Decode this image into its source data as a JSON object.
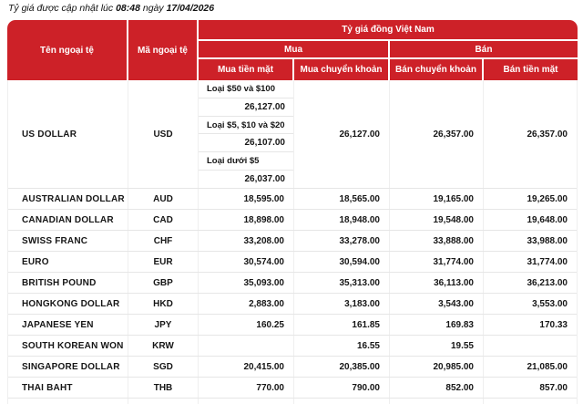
{
  "colors": {
    "header_red": "#CD2128"
  },
  "updated": {
    "prefix": "Tỷ giá được cập nhật lúc",
    "time": "08:48",
    "middle": "ngày",
    "date": "17/04/2026"
  },
  "table": {
    "headers": {
      "currency_name": "Tên ngoại tệ",
      "currency_code": "Mã ngoại tệ",
      "rate_group": "Tỷ giá đồng Việt Nam",
      "buy": "Mua",
      "sell": "Bán",
      "buy_cash": "Mua tiền mặt",
      "buy_transfer": "Mua chuyển khoản",
      "sell_transfer": "Bán chuyển khoản",
      "sell_cash": "Bán tiền mặt"
    },
    "usd": {
      "name": "US DOLLAR",
      "code": "USD",
      "tiers": [
        {
          "label": "Loại $50 và $100",
          "value": "26,127.00"
        },
        {
          "label": "Loại $5, $10 và $20",
          "value": "26,107.00"
        },
        {
          "label": "Loại dưới $5",
          "value": "26,037.00"
        }
      ],
      "buy_transfer": "26,127.00",
      "sell_transfer": "26,357.00",
      "sell_cash": "26,357.00"
    },
    "rows": [
      {
        "name": "AUSTRALIAN DOLLAR",
        "code": "AUD",
        "buy_cash": "18,595.00",
        "buy_transfer": "18,565.00",
        "sell_transfer": "19,165.00",
        "sell_cash": "19,265.00"
      },
      {
        "name": "CANADIAN DOLLAR",
        "code": "CAD",
        "buy_cash": "18,898.00",
        "buy_transfer": "18,948.00",
        "sell_transfer": "19,548.00",
        "sell_cash": "19,648.00"
      },
      {
        "name": "SWISS FRANC",
        "code": "CHF",
        "buy_cash": "33,208.00",
        "buy_transfer": "33,278.00",
        "sell_transfer": "33,888.00",
        "sell_cash": "33,988.00"
      },
      {
        "name": "EURO",
        "code": "EUR",
        "buy_cash": "30,574.00",
        "buy_transfer": "30,594.00",
        "sell_transfer": "31,774.00",
        "sell_cash": "31,774.00"
      },
      {
        "name": "BRITISH POUND",
        "code": "GBP",
        "buy_cash": "35,093.00",
        "buy_transfer": "35,313.00",
        "sell_transfer": "36,113.00",
        "sell_cash": "36,213.00"
      },
      {
        "name": "HONGKONG DOLLAR",
        "code": "HKD",
        "buy_cash": "2,883.00",
        "buy_transfer": "3,183.00",
        "sell_transfer": "3,543.00",
        "sell_cash": "3,553.00"
      },
      {
        "name": "JAPANESE YEN",
        "code": "JPY",
        "buy_cash": "160.25",
        "buy_transfer": "161.85",
        "sell_transfer": "169.83",
        "sell_cash": "170.33"
      },
      {
        "name": "SOUTH KOREAN WON",
        "code": "KRW",
        "buy_cash": "",
        "buy_transfer": "16.55",
        "sell_transfer": "19.55",
        "sell_cash": ""
      },
      {
        "name": "SINGAPORE DOLLAR",
        "code": "SGD",
        "buy_cash": "20,415.00",
        "buy_transfer": "20,385.00",
        "sell_transfer": "20,985.00",
        "sell_cash": "21,085.00"
      },
      {
        "name": "THAI BAHT",
        "code": "THB",
        "buy_cash": "770.00",
        "buy_transfer": "790.00",
        "sell_transfer": "852.00",
        "sell_cash": "857.00"
      }
    ]
  }
}
